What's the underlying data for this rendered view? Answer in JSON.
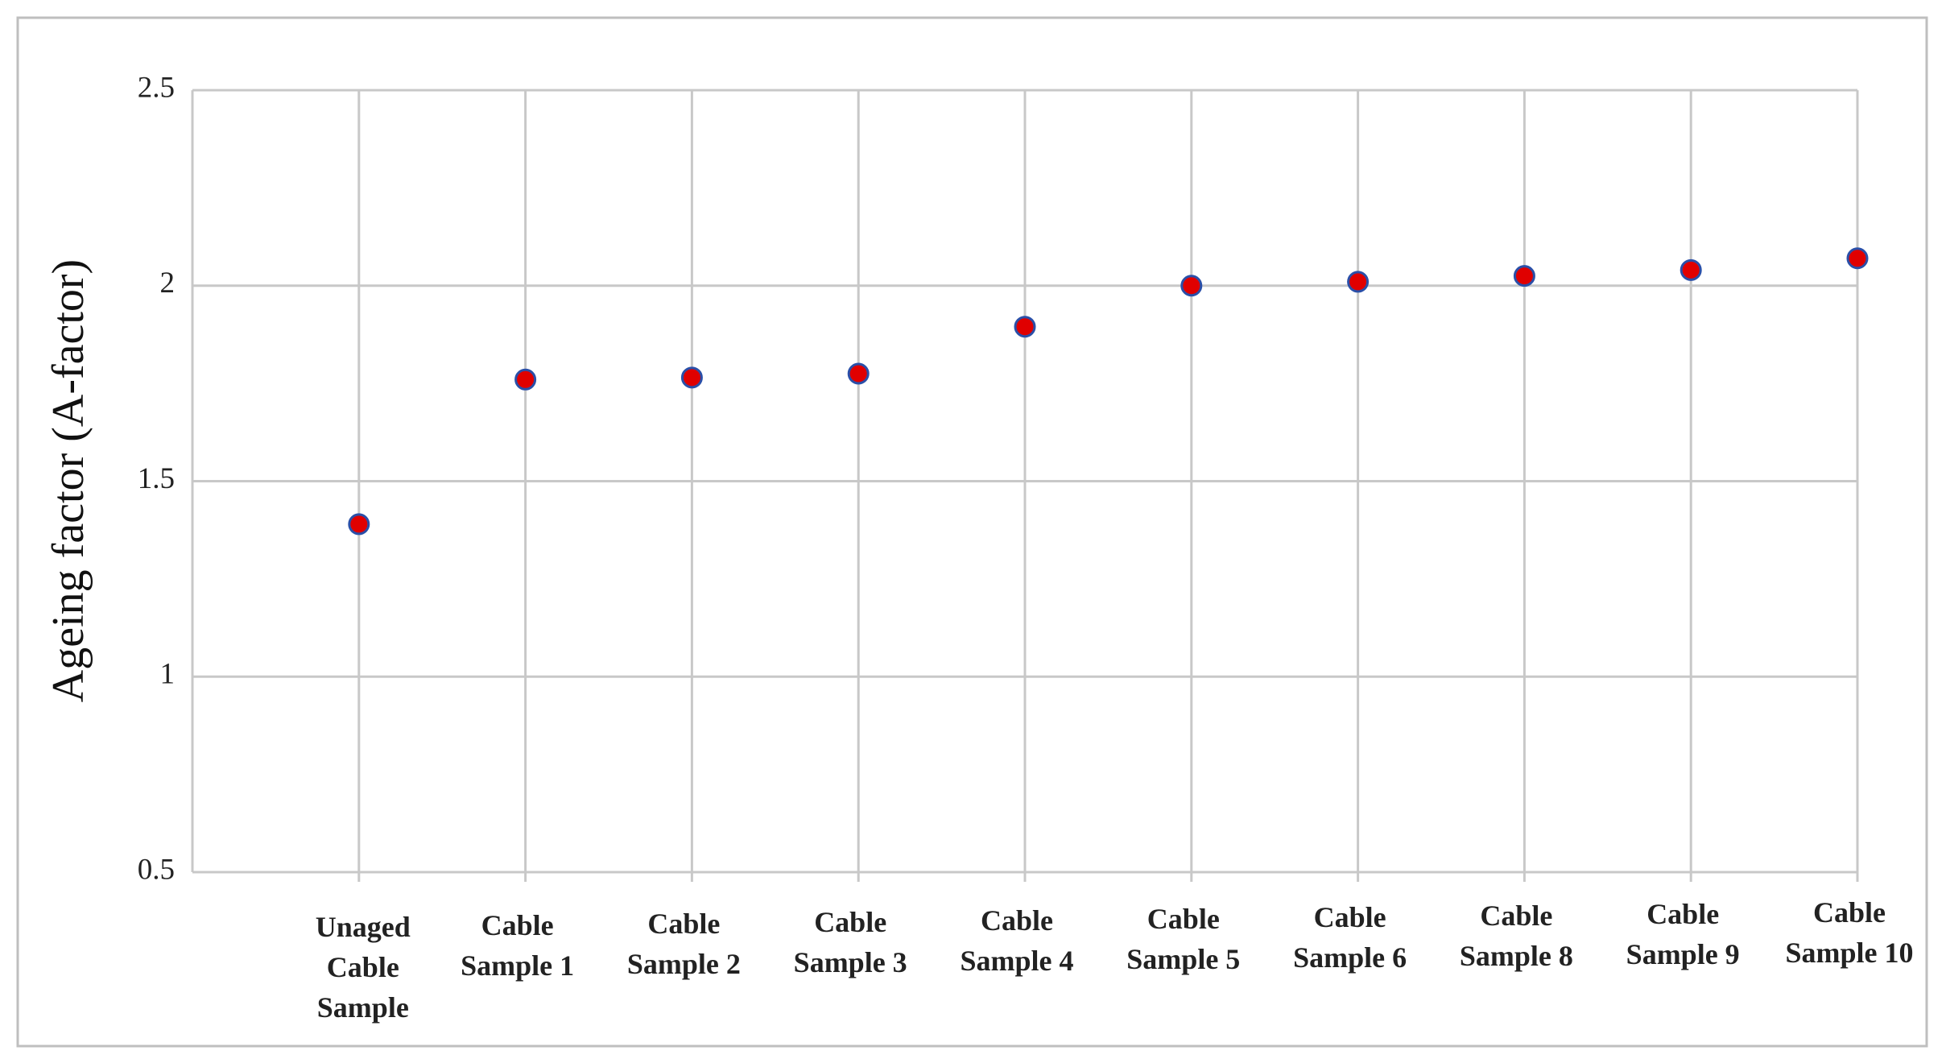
{
  "chart_data": {
    "type": "scatter",
    "y_label": "Ageing factor (A-factor)",
    "categories": [
      "Unaged Cable\nSample",
      "Cable\nSample 1",
      "Cable\nSample 2",
      "Cable\nSample 3",
      "Cable\nSample 4",
      "Cable\nSample 5",
      "Cable\nSample 6",
      "Cable\nSample 8",
      "Cable\nSample 9",
      "Cable\nSample 10"
    ],
    "values": [
      1.39,
      1.76,
      1.765,
      1.775,
      1.895,
      2.0,
      2.01,
      2.025,
      2.04,
      2.07
    ],
    "color": "#e00000",
    "edge_color": "#2a4fa8",
    "ylim": [
      0.5,
      2.5
    ],
    "yticks": [
      0.5,
      1,
      1.5,
      2,
      2.5
    ],
    "grid": true
  }
}
